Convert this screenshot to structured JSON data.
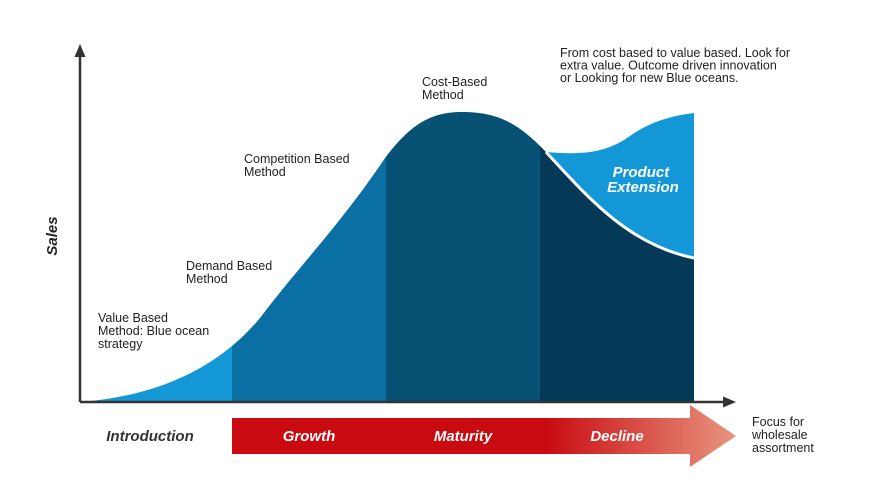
{
  "axis": {
    "y_label": "Sales"
  },
  "stages": [
    {
      "name": "Introduction",
      "color": "#333333"
    },
    {
      "name": "Growth",
      "color": "#ffffff"
    },
    {
      "name": "Maturity",
      "color": "#ffffff"
    },
    {
      "name": "Decline",
      "color": "#ffffff"
    }
  ],
  "pricing_methods": [
    {
      "lines": [
        "Value Based",
        "Method: Blue ocean",
        "strategy"
      ]
    },
    {
      "lines": [
        "Demand Based",
        "Method"
      ]
    },
    {
      "lines": [
        "Competition Based",
        "Method"
      ]
    },
    {
      "lines": [
        "Cost-Based",
        "Method"
      ]
    }
  ],
  "note": {
    "lines": [
      "From cost based to value based. Look for",
      "extra value. Outcome driven innovation",
      "or Looking for new Blue oceans."
    ]
  },
  "product_extension": {
    "lines": [
      "Product",
      "Extension"
    ]
  },
  "arrow_end_label": {
    "lines": [
      "Focus for",
      "wholesale",
      "assortment"
    ]
  },
  "colors": {
    "introduction": "#1497d6",
    "growth": "#0a6fa3",
    "maturity": "#065174",
    "decline": "#043a57",
    "extension": "#1497d6",
    "arrow_start": "#c90a10",
    "arrow_end": "#e8957f",
    "axis": "#333333"
  }
}
